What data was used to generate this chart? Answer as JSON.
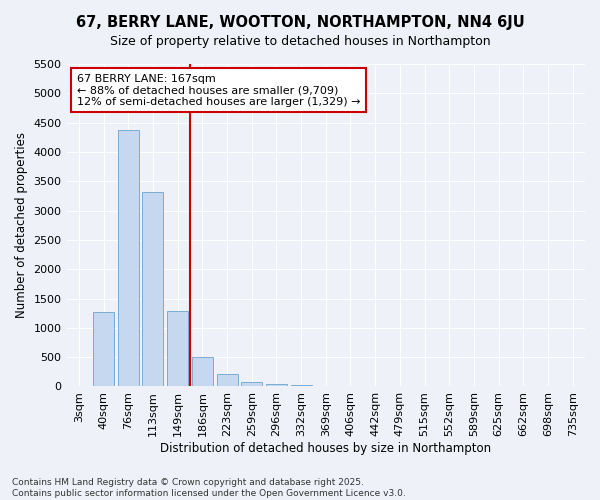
{
  "title": "67, BERRY LANE, WOOTTON, NORTHAMPTON, NN4 6JU",
  "subtitle": "Size of property relative to detached houses in Northampton",
  "xlabel": "Distribution of detached houses by size in Northampton",
  "ylabel": "Number of detached properties",
  "bin_labels": [
    "3sqm",
    "40sqm",
    "76sqm",
    "113sqm",
    "149sqm",
    "186sqm",
    "223sqm",
    "259sqm",
    "296sqm",
    "332sqm",
    "369sqm",
    "406sqm",
    "442sqm",
    "479sqm",
    "515sqm",
    "552sqm",
    "589sqm",
    "625sqm",
    "662sqm",
    "698sqm",
    "735sqm"
  ],
  "bar_values": [
    0,
    1270,
    4380,
    3320,
    1290,
    500,
    220,
    70,
    40,
    20,
    5,
    2,
    0,
    0,
    0,
    0,
    0,
    0,
    0,
    0,
    0
  ],
  "bar_color": "#c5d8f0",
  "bar_edgecolor": "#7aadd4",
  "bar_width": 0.85,
  "vline_color": "#cc0000",
  "ylim": [
    0,
    5500
  ],
  "yticks": [
    0,
    500,
    1000,
    1500,
    2000,
    2500,
    3000,
    3500,
    4000,
    4500,
    5000,
    5500
  ],
  "annotation_text": "67 BERRY LANE: 167sqm\n← 88% of detached houses are smaller (9,709)\n12% of semi-detached houses are larger (1,329) →",
  "annotation_box_facecolor": "#ffffff",
  "annotation_box_edgecolor": "#cc0000",
  "footnote": "Contains HM Land Registry data © Crown copyright and database right 2025.\nContains public sector information licensed under the Open Government Licence v3.0.",
  "bg_color": "#eef2f8",
  "grid_color": "#ffffff",
  "title_fontsize": 10.5,
  "subtitle_fontsize": 9,
  "axis_label_fontsize": 8.5,
  "tick_fontsize": 8,
  "annot_fontsize": 8,
  "footnote_fontsize": 6.5
}
